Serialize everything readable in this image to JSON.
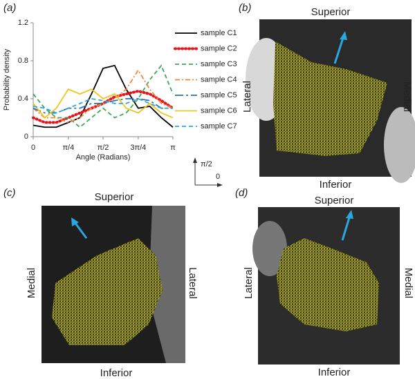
{
  "chart_data": {
    "type": "line",
    "panel_label": "(a)",
    "x_label": "Angle (Radians)",
    "y_label": "Probability density",
    "x": [
      0,
      0.26,
      0.52,
      0.79,
      1.05,
      1.31,
      1.57,
      1.83,
      2.09,
      2.36,
      2.62,
      2.88,
      3.14
    ],
    "xlim": [
      0,
      3.14
    ],
    "xticks": [
      {
        "value": 0,
        "label": "0"
      },
      {
        "value": 0.79,
        "label": "π/4"
      },
      {
        "value": 1.57,
        "label": "π/2"
      },
      {
        "value": 2.36,
        "label": "3π/4"
      },
      {
        "value": 3.14,
        "label": "π"
      }
    ],
    "ylim": [
      0,
      1.2
    ],
    "yticks": [
      0,
      0.4,
      0.8,
      1.2
    ],
    "legend": "right",
    "series": [
      {
        "name": "sample C1",
        "color": "#000000",
        "dash": "solid",
        "values": [
          0.12,
          0.1,
          0.1,
          0.15,
          0.2,
          0.45,
          0.72,
          0.75,
          0.5,
          0.3,
          0.32,
          0.2,
          0.1
        ]
      },
      {
        "name": "sample C2",
        "color": "#e8141b",
        "dash": "dotted",
        "values": [
          0.2,
          0.15,
          0.15,
          0.2,
          0.25,
          0.3,
          0.35,
          0.42,
          0.45,
          0.48,
          0.45,
          0.38,
          0.3
        ]
      },
      {
        "name": "sample C3",
        "color": "#3aaa5a",
        "dash": "dashed",
        "values": [
          0.45,
          0.3,
          0.2,
          0.2,
          0.1,
          0.2,
          0.3,
          0.2,
          0.25,
          0.4,
          0.6,
          0.75,
          0.45
        ]
      },
      {
        "name": "sample C4",
        "color": "#f0883a",
        "dash": "dashdot",
        "values": [
          0.3,
          0.2,
          0.2,
          0.15,
          0.2,
          0.3,
          0.35,
          0.4,
          0.5,
          0.7,
          0.5,
          0.35,
          0.3
        ]
      },
      {
        "name": "sample C5",
        "color": "#2e6fb5",
        "dash": "longdash",
        "values": [
          0.3,
          0.25,
          0.25,
          0.3,
          0.3,
          0.35,
          0.35,
          0.38,
          0.4,
          0.4,
          0.38,
          0.3,
          0.3
        ]
      },
      {
        "name": "sample C6",
        "color": "#f2c51a",
        "dash": "solid",
        "values": [
          0.35,
          0.2,
          0.3,
          0.5,
          0.45,
          0.5,
          0.4,
          0.45,
          0.3,
          0.25,
          0.35,
          0.25,
          0.2
        ]
      },
      {
        "name": "sample C7",
        "color": "#29a8e0",
        "dash": "dashed",
        "values": [
          0.32,
          0.3,
          0.25,
          0.3,
          0.35,
          0.4,
          0.38,
          0.35,
          0.35,
          0.4,
          0.35,
          0.3,
          0.3
        ]
      }
    ]
  },
  "compass": {
    "up": "π/2",
    "right": "0"
  },
  "panels": [
    {
      "label": "(b)",
      "top": "Superior",
      "bottom": "Inferior",
      "left": "Lateral",
      "right": "Medial"
    },
    {
      "label": "(c)",
      "top": "Superior",
      "bottom": "Inferior",
      "left": "Medial",
      "right": "Lateral"
    },
    {
      "label": "(d)",
      "top": "Superior",
      "bottom": "Inferior",
      "left": "Lateral",
      "right": "Medial"
    }
  ]
}
